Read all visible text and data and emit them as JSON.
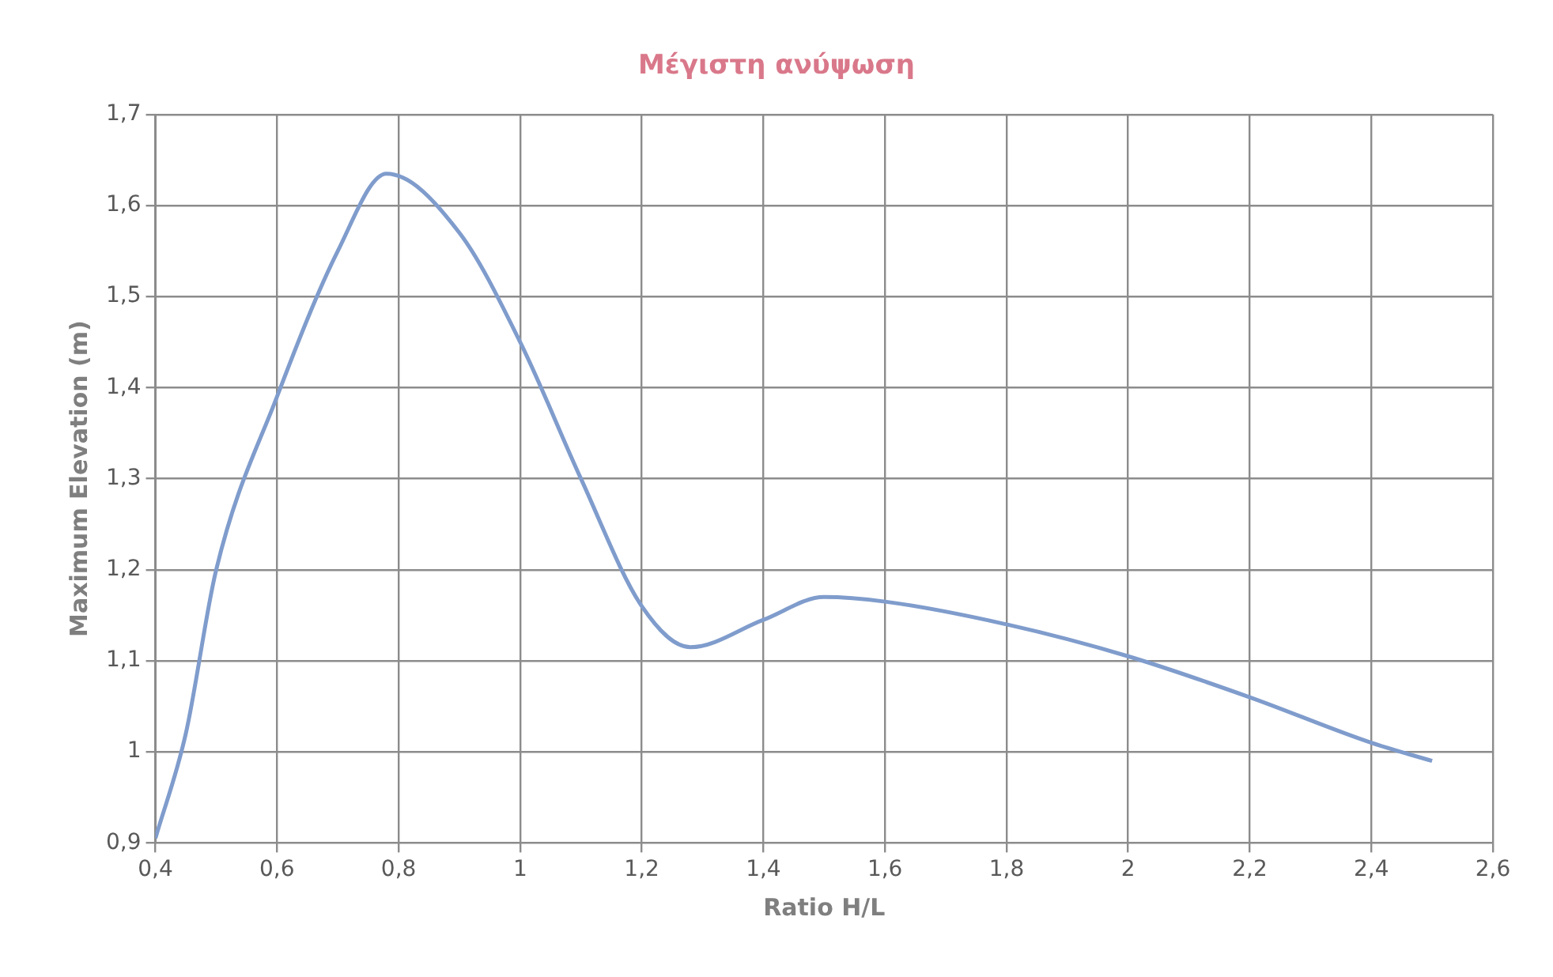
{
  "chart_data": {
    "type": "line",
    "title": "Μέγιστη ανύψωση",
    "xlabel": "Ratio H/L",
    "ylabel": "Maximum Elevation (m)",
    "x": [
      0.4,
      0.45,
      0.5,
      0.6,
      0.7,
      0.78,
      0.9,
      1.0,
      1.1,
      1.2,
      1.28,
      1.4,
      1.5,
      1.6,
      1.8,
      2.0,
      2.2,
      2.4,
      2.5
    ],
    "series": [
      {
        "color": "#7f9ccc",
        "values": [
          0.905,
          1.02,
          1.2,
          1.39,
          1.55,
          1.635,
          1.57,
          1.45,
          1.3,
          1.16,
          1.115,
          1.145,
          1.17,
          1.165,
          1.14,
          1.105,
          1.06,
          1.01,
          0.99
        ]
      }
    ],
    "xlim": [
      0.4,
      2.6
    ],
    "xticks": [
      {
        "value": 0.4,
        "label": "0,4"
      },
      {
        "value": 0.6,
        "label": "0,6"
      },
      {
        "value": 0.8,
        "label": "0,8"
      },
      1,
      {
        "value": 1.2,
        "label": "1,2"
      },
      {
        "value": 1.4,
        "label": "1,4"
      },
      {
        "value": 1.6,
        "label": "1,6"
      },
      {
        "value": 1.8,
        "label": "1,8"
      },
      2,
      {
        "value": 2.2,
        "label": "2,2"
      },
      {
        "value": 2.4,
        "label": "2,4"
      },
      {
        "value": 2.6,
        "label": "2,6"
      }
    ],
    "ylim": [
      0.9,
      1.7
    ],
    "yticks": [
      {
        "value": 0.9,
        "label": "0,9"
      },
      1,
      {
        "value": 1.1,
        "label": "1,1"
      },
      {
        "value": 1.2,
        "label": "1,2"
      },
      {
        "value": 1.3,
        "label": "1,3"
      },
      {
        "value": 1.4,
        "label": "1,4"
      },
      {
        "value": 1.5,
        "label": "1,5"
      },
      {
        "value": 1.6,
        "label": "1,6"
      },
      {
        "value": 1.7,
        "label": "1,7"
      }
    ],
    "grid": true,
    "legend": false,
    "marker": "none",
    "line_style": "solid"
  }
}
